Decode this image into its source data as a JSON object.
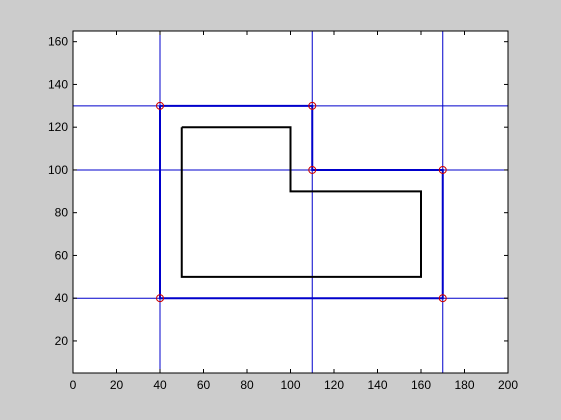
{
  "chart_data": {
    "type": "line",
    "title": "",
    "xlabel": "",
    "ylabel": "",
    "xlim": [
      0,
      200
    ],
    "ylim": [
      5,
      165
    ],
    "xticks": [
      0,
      20,
      40,
      60,
      80,
      100,
      120,
      140,
      160,
      180,
      200
    ],
    "yticks": [
      20,
      40,
      60,
      80,
      100,
      120,
      140,
      160
    ],
    "grid": false,
    "vertical_lines": [
      40,
      110,
      170
    ],
    "horizontal_lines": [
      40,
      100,
      130
    ],
    "series": [
      {
        "color": "#000000",
        "x": [
          50,
          100,
          100,
          160,
          160,
          50,
          50
        ],
        "y": [
          120,
          120,
          90,
          90,
          50,
          50,
          120
        ]
      },
      {
        "color": "#0000cc",
        "x": [
          40,
          110,
          110,
          170,
          170,
          40,
          40
        ],
        "y": [
          130,
          130,
          100,
          100,
          40,
          40,
          130
        ]
      }
    ],
    "markers": {
      "color": "#cc0000",
      "shape": "circle",
      "x": [
        40,
        110,
        110,
        170,
        170,
        40
      ],
      "y": [
        130,
        130,
        100,
        100,
        40,
        40
      ]
    },
    "colors": {
      "figure_bg": "#cccccc",
      "axes_bg": "#ffffff",
      "reference_lines": "#0000cc"
    }
  }
}
